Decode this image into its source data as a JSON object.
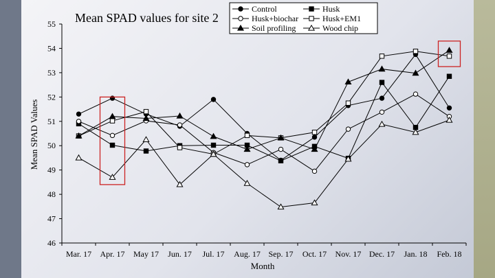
{
  "chart_data": {
    "type": "line",
    "title": "Mean SPAD values for site 2",
    "xlabel": "Month",
    "ylabel": "Mean SPAD Values",
    "ylim": [
      46,
      55
    ],
    "yticks": [
      46,
      47,
      48,
      49,
      50,
      51,
      52,
      53,
      54,
      55
    ],
    "categories": [
      "Mar. 17",
      "Apr. 17",
      "May 17",
      "Jun. 17",
      "Jul. 17",
      "Aug. 17",
      "Sep. 17",
      "Oct. 17",
      "Nov. 17",
      "Dec. 17",
      "Jan. 18",
      "Feb. 18"
    ],
    "grid": false,
    "legend_position": "top-right",
    "highlight_boxes": [
      "Apr. 17",
      "Feb. 18"
    ],
    "highlight_color": "#cc2222",
    "series": [
      {
        "name": "Control",
        "marker": "filled-circle",
        "values": [
          51.3,
          51.95,
          51.3,
          50.8,
          51.9,
          50.5,
          49.4,
          50.35,
          51.65,
          51.95,
          53.75,
          51.55
        ]
      },
      {
        "name": "Husk",
        "marker": "filled-square",
        "values": [
          50.9,
          50.02,
          49.78,
          50.0,
          50.02,
          50.02,
          49.38,
          49.97,
          49.48,
          52.6,
          50.75,
          52.85
        ]
      },
      {
        "name": "Husk+biochar",
        "marker": "open-circle",
        "values": [
          51.0,
          50.42,
          51.02,
          50.85,
          49.72,
          49.22,
          49.85,
          48.95,
          50.68,
          51.38,
          52.12,
          51.2
        ]
      },
      {
        "name": "Husk+EM1",
        "marker": "open-square",
        "values": [
          50.4,
          51.02,
          51.4,
          49.92,
          49.65,
          50.42,
          50.32,
          50.55,
          51.75,
          53.68,
          53.88,
          53.68
        ]
      },
      {
        "name": "Soil profiling",
        "marker": "filled-triangle",
        "values": [
          50.4,
          51.2,
          51.12,
          51.22,
          50.38,
          49.85,
          50.32,
          49.85,
          52.62,
          53.15,
          52.98,
          53.92
        ]
      },
      {
        "name": "Wood chip",
        "marker": "open-triangle",
        "values": [
          49.5,
          48.7,
          50.25,
          48.4,
          49.65,
          48.45,
          47.48,
          47.65,
          49.45,
          50.88,
          50.55,
          51.05
        ]
      }
    ]
  }
}
